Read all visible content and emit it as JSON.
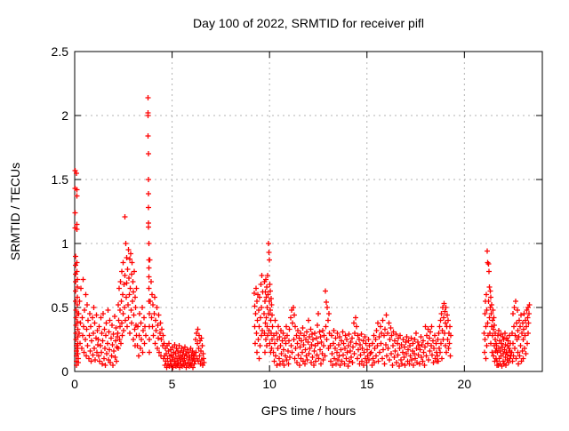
{
  "window": {
    "background": "#ffffff"
  },
  "chart_data": {
    "type": "scatter",
    "title": "Day 100 of 2022, SRMTID for receiver pifl",
    "xlabel": "GPS time / hours",
    "ylabel": "SRMTID / TECUs",
    "xlim": [
      0,
      24
    ],
    "ylim": [
      0,
      2.5
    ],
    "xticks": [
      0,
      5,
      10,
      15,
      20
    ],
    "xtick_labels": [
      "0",
      "5",
      "10",
      "15",
      "20"
    ],
    "yticks": [
      0,
      0.5,
      1,
      1.5,
      2,
      2.5
    ],
    "ytick_labels": [
      "0",
      "0.5",
      "1",
      "1.5",
      "2",
      "2.5"
    ],
    "grid": true,
    "legend": null,
    "marker": "plus",
    "marker_color": "#ff0000",
    "grid_color": "#b3b3b3",
    "axis_color": "#000000",
    "series": [
      {
        "name": "SRMTID",
        "segments": [
          {
            "x0": 0.02,
            "dx": 0.004,
            "y": [
              1.57,
              1.43,
              1.24,
              1.12,
              0.9,
              0.83,
              0.76,
              0.7,
              0.63,
              0.55,
              0.48,
              0.42,
              0.36,
              0.3,
              0.25,
              0.2,
              0.16,
              0.12,
              0.08,
              0.05,
              1.55,
              1.42,
              1.37,
              1.15,
              1.11,
              0.85,
              0.78,
              0.72,
              0.66,
              0.58,
              0.52,
              0.45,
              0.39,
              0.33,
              0.27,
              0.22,
              0.18,
              0.14,
              0.1,
              0.07
            ]
          },
          {
            "x0": 0.2,
            "dx": 0.026,
            "y": [
              0.45,
              0.3,
              0.55,
              0.22,
              0.38,
              0.65,
              0.18,
              0.42,
              0.28,
              0.72,
              0.35,
              0.15,
              0.48,
              0.25,
              0.6,
              0.12,
              0.33,
              0.52,
              0.2,
              0.4,
              0.1,
              0.28,
              0.45,
              0.16,
              0.35,
              0.08,
              0.24,
              0.42,
              0.13,
              0.3,
              0.5,
              0.18,
              0.38,
              0.09,
              0.26,
              0.44,
              0.15,
              0.32,
              0.21
            ]
          },
          {
            "x0": 1.21,
            "dx": 0.026,
            "y": [
              0.25,
              0.12,
              0.35,
              0.08,
              0.2,
              0.42,
              0.15,
              0.3,
              0.06,
              0.24,
              0.45,
              0.1,
              0.33,
              0.18,
              0.05,
              0.28,
              0.38,
              0.14,
              0.22,
              0.48,
              0.09,
              0.31,
              0.17,
              0.4,
              0.07,
              0.26,
              0.12,
              0.36,
              0.21,
              0.05,
              0.29,
              0.16,
              0.43,
              0.11,
              0.24,
              0.34,
              0.08,
              0.19,
              0.27
            ]
          },
          {
            "x0": 2.21,
            "dx": 0.018,
            "y": [
              0.3,
              0.52,
              0.18,
              0.4,
              0.65,
              0.25,
              0.48,
              0.35,
              0.7,
              0.22,
              0.55,
              0.38,
              0.78,
              0.28,
              0.6,
              0.45,
              0.85,
              0.32,
              0.68,
              0.5,
              1.21,
              0.75,
              0.4,
              1.0,
              0.58,
              0.89,
              0.69,
              0.35,
              0.8,
              0.52,
              0.95,
              0.42,
              0.73,
              0.6,
              0.88,
              0.3,
              0.65,
              0.92,
              0.48,
              0.76,
              0.38,
              0.85,
              0.55,
              0.7,
              0.25,
              0.62,
              0.44,
              0.78,
              0.33,
              0.58,
              0.2,
              0.5,
              0.36,
              0.65,
              0.28
            ]
          },
          {
            "x0": 3.22,
            "dx": 0.03,
            "y": [
              0.2,
              0.35,
              0.12,
              0.28,
              0.45,
              0.18,
              0.38,
              0.25,
              0.5,
              0.15,
              0.32,
              0.42,
              0.22,
              0.35,
              0.28
            ]
          },
          {
            "x0": 3.76,
            "dx": 0.004,
            "y": [
              2.14,
              2.02,
              2.0,
              1.84,
              1.7,
              1.5,
              1.39,
              1.28,
              1.16,
              1.13,
              1.0,
              0.87,
              0.81,
              0.74,
              0.65,
              0.55,
              0.45,
              0.35,
              0.25,
              0.15
            ]
          },
          {
            "x0": 3.86,
            "dx": 0.027,
            "y": [
              0.87,
              0.55,
              0.7,
              0.42,
              0.6,
              0.35,
              0.52,
              0.28,
              0.45,
              0.58,
              0.22,
              0.4,
              0.32,
              0.5,
              0.18,
              0.36,
              0.26,
              0.44,
              0.15,
              0.3,
              0.38,
              0.12,
              0.25,
              0.33,
              0.2,
              0.28,
              0.1,
              0.22
            ]
          },
          {
            "x0": 4.61,
            "dx": 0.023,
            "y": [
              0.12,
              0.05,
              0.18,
              0.08,
              0.14,
              0.03,
              0.2,
              0.1,
              0.06,
              0.16,
              0.22,
              0.04,
              0.12,
              0.08,
              0.17,
              0.05,
              0.13,
              0.09,
              0.19,
              0.03,
              0.11,
              0.15,
              0.06,
              0.21,
              0.08,
              0.14,
              0.04,
              0.18,
              0.1,
              0.05,
              0.16,
              0.07,
              0.12,
              0.2,
              0.03,
              0.09,
              0.15,
              0.06,
              0.11,
              0.18,
              0.04,
              0.13,
              0.08,
              0.16,
              0.05,
              0.1,
              0.19,
              0.07,
              0.14,
              0.03,
              0.12,
              0.17,
              0.06,
              0.09,
              0.15,
              0.04,
              0.11,
              0.07,
              0.18,
              0.05,
              0.13,
              0.09,
              0.16,
              0.03,
              0.1,
              0.14,
              0.06,
              0.12,
              0.08,
              0.25,
              0.15,
              0.3,
              0.1,
              0.22,
              0.33,
              0.08,
              0.18,
              0.28,
              0.12,
              0.24,
              0.06,
              0.16,
              0.26,
              0.09,
              0.2,
              0.05,
              0.14,
              0.1,
              0.07
            ]
          },
          {
            "x0": 9.21,
            "dx": 0.019,
            "y": [
              0.61,
              0.35,
              0.51,
              0.22,
              0.45,
              0.65,
              0.3,
              0.55,
              0.15,
              0.4,
              0.6,
              0.25,
              0.48,
              0.1,
              0.35,
              0.58,
              0.2,
              0.42,
              0.68,
              0.28,
              0.5,
              0.75,
              0.32,
              0.62
            ]
          },
          {
            "x0": 9.72,
            "dx": 0.012,
            "y": [
              0.45,
              0.7,
              0.3,
              0.55,
              0.15,
              0.62,
              0.38,
              0.72,
              0.25,
              0.58,
              0.42,
              0.66,
              0.2,
              0.5,
              0.35,
              0.75,
              0.28,
              0.6,
              1.0,
              0.45,
              0.93,
              0.32,
              0.87,
              0.55,
              0.68,
              0.22,
              0.48,
              0.63,
              0.15,
              0.4,
              0.57,
              0.3,
              0.52,
              0.18,
              0.44,
              0.25
            ]
          },
          {
            "x0": 10.16,
            "dx": 0.027,
            "y": [
              0.35,
              0.15,
              0.28,
              0.08,
              0.22,
              0.4,
              0.12,
              0.3,
              0.05,
              0.25,
              0.18,
              0.35,
              0.1,
              0.27,
              0.06,
              0.2,
              0.32,
              0.14,
              0.24,
              0.08,
              0.3,
              0.17,
              0.05,
              0.26,
              0.12,
              0.22,
              0.35,
              0.09,
              0.28,
              0.16,
              0.06,
              0.24,
              0.33,
              0.11,
              0.42,
              0.2,
              0.48,
              0.15,
              0.38,
              0.5,
              0.25,
              0.44,
              0.1,
              0.35,
              0.18,
              0.28,
              0.07,
              0.22,
              0.32,
              0.13,
              0.26,
              0.05,
              0.19,
              0.3,
              0.1,
              0.24,
              0.15,
              0.34,
              0.08,
              0.21,
              0.28,
              0.06,
              0.17,
              0.25,
              0.12,
              0.31,
              0.09,
              0.23,
              0.4,
              0.14,
              0.27,
              0.18,
              0.33,
              0.07,
              0.21,
              0.29,
              0.11,
              0.25,
              0.05,
              0.16,
              0.3,
              0.2,
              0.08,
              0.26,
              0.13,
              0.36,
              0.22,
              0.45,
              0.1,
              0.31,
              0.17,
              0.27,
              0.06,
              0.23,
              0.14,
              0.32,
              0.09,
              0.2,
              0.28,
              0.12,
              0.63,
              0.35,
              0.54,
              0.25,
              0.5,
              0.4,
              0.18,
              0.45,
              0.3
            ]
          },
          {
            "x0": 13.12,
            "dx": 0.03,
            "y": [
              0.2,
              0.08,
              0.28,
              0.14,
              0.05,
              0.22,
              0.32,
              0.1,
              0.18,
              0.26,
              0.06,
              0.15,
              0.3,
              0.09,
              0.21,
              0.12,
              0.27,
              0.05,
              0.17,
              0.24,
              0.08,
              0.31,
              0.13,
              0.22,
              0.06,
              0.18,
              0.28,
              0.1,
              0.25,
              0.15,
              0.04,
              0.2,
              0.29,
              0.08,
              0.16,
              0.23,
              0.11,
              0.26,
              0.07,
              0.19,
              0.38,
              0.14,
              0.3,
              0.42,
              0.22,
              0.35,
              0.1,
              0.28,
              0.17,
              0.25,
              0.06,
              0.21,
              0.13,
              0.29,
              0.08,
              0.18,
              0.24,
              0.05,
              0.15,
              0.27,
              0.1,
              0.22,
              0.07,
              0.17,
              0.12,
              0.25,
              0.09,
              0.2,
              0.14
            ]
          },
          {
            "x0": 15.22,
            "dx": 0.031,
            "y": [
              0.15,
              0.05,
              0.22,
              0.1,
              0.28,
              0.07,
              0.18,
              0.25,
              0.12,
              0.32,
              0.2,
              0.38,
              0.08,
              0.27,
              0.15,
              0.35,
              0.22,
              0.3,
              0.1,
              0.4,
              0.17,
              0.28,
              0.06,
              0.33,
              0.21,
              0.44,
              0.12,
              0.3,
              0.18,
              0.38,
              0.09,
              0.25,
              0.34,
              0.14,
              0.28,
              0.05,
              0.2,
              0.31,
              0.11,
              0.24,
              0.16,
              0.29,
              0.07,
              0.22,
              0.13,
              0.26,
              0.04,
              0.18,
              0.28,
              0.09,
              0.21,
              0.06,
              0.15,
              0.25,
              0.11,
              0.19,
              0.05,
              0.23,
              0.14,
              0.27,
              0.08,
              0.17,
              0.24,
              0.06,
              0.2,
              0.12,
              0.26,
              0.09,
              0.16,
              0.22,
              0.05,
              0.14,
              0.25,
              0.1,
              0.3,
              0.18,
              0.07,
              0.23,
              0.13,
              0.2,
              0.06,
              0.17,
              0.27,
              0.11,
              0.21,
              0.08,
              0.24,
              0.15,
              0.05,
              0.19,
              0.35,
              0.12,
              0.28,
              0.22,
              0.33,
              0.09,
              0.26,
              0.16,
              0.31,
              0.2,
              0.35,
              0.13,
              0.24,
              0.07,
              0.18,
              0.28,
              0.1,
              0.22,
              0.15,
              0.08
            ]
          },
          {
            "x0": 18.62,
            "dx": 0.022,
            "y": [
              0.12,
              0.25,
              0.08,
              0.3,
              0.18,
              0.35,
              0.15,
              0.4,
              0.22,
              0.45,
              0.1,
              0.32,
              0.5,
              0.25,
              0.42,
              0.53,
              0.3,
              0.47,
              0.2,
              0.38,
              0.5,
              0.15,
              0.35,
              0.44,
              0.25,
              0.4,
              0.18,
              0.3,
              0.22,
              0.35,
              0.12,
              0.28
            ]
          },
          {
            "x0": 21.02,
            "dx": 0.015,
            "y": [
              0.3,
              0.15,
              0.45,
              0.25,
              0.55,
              0.1,
              0.35,
              0.6,
              0.2,
              0.48,
              0.94,
              0.38,
              0.85,
              0.28,
              0.84,
              0.55,
              0.78,
              0.42,
              0.66,
              0.3,
              0.63,
              0.5,
              0.58,
              0.22,
              0.45,
              0.35,
              0.52,
              0.15,
              0.4,
              0.28,
              0.48,
              0.12,
              0.33,
              0.42,
              0.2,
              0.36,
              0.08,
              0.25,
              0.3,
              0.16,
              0.22,
              0.1,
              0.18,
              0.05
            ]
          },
          {
            "x0": 21.66,
            "dx": 0.019,
            "y": [
              0.2,
              0.08,
              0.15,
              0.28,
              0.05,
              0.18,
              0.32,
              0.1,
              0.24,
              0.06,
              0.16,
              0.29,
              0.12,
              0.22,
              0.04,
              0.19,
              0.27,
              0.08,
              0.14,
              0.25,
              0.06,
              0.17,
              0.3,
              0.11,
              0.21,
              0.05,
              0.15,
              0.26,
              0.09,
              0.2,
              0.13,
              0.24,
              0.07,
              0.18,
              0.28,
              0.1,
              0.16,
              0.22,
              0.12
            ]
          },
          {
            "x0": 22.42,
            "dx": 0.021,
            "y": [
              0.15,
              0.3,
              0.08,
              0.22,
              0.45,
              0.12,
              0.35,
              0.5,
              0.18,
              0.28,
              0.55,
              0.1,
              0.38,
              0.25,
              0.48,
              0.15,
              0.32,
              0.06,
              0.27,
              0.4,
              0.12,
              0.35,
              0.2,
              0.44,
              0.08,
              0.3,
              0.16,
              0.38,
              0.25,
              0.1,
              0.33,
              0.45,
              0.18,
              0.28,
              0.4,
              0.14,
              0.35,
              0.48,
              0.22,
              0.42,
              0.3,
              0.5,
              0.38,
              0.45,
              0.52
            ]
          }
        ]
      }
    ]
  }
}
